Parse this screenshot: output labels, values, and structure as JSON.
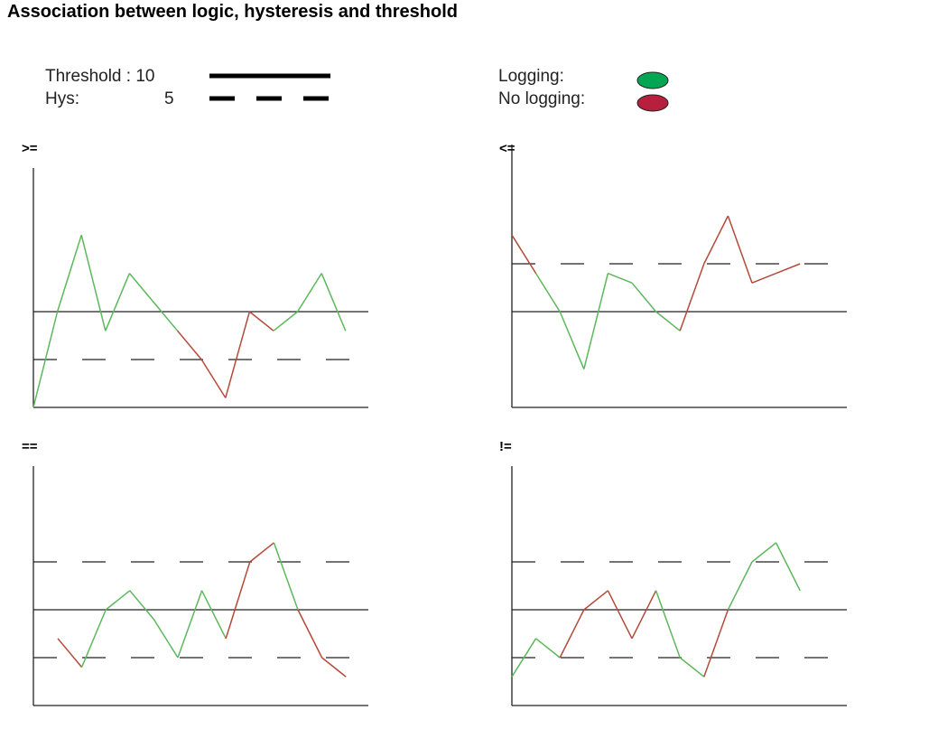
{
  "title": "Association between logic, hysteresis and threshold",
  "legend": {
    "threshold_label": "Threshold : 10",
    "hys_label": "Hys:",
    "hys_value": "5",
    "logging_label": "Logging:",
    "no_logging_label": "No logging:"
  },
  "colors": {
    "logging": "#00a651",
    "no_logging": "#b81f3c",
    "line_logging": "#5cb85c",
    "line_no_logging": "#b34a3a"
  },
  "panels": [
    {
      "operator": ">=",
      "threshold": 10,
      "hysteresis_lines": [
        5
      ],
      "points": [
        {
          "v": 0,
          "log": false
        },
        {
          "v": 10,
          "log": true
        },
        {
          "v": 18,
          "log": true
        },
        {
          "v": 8,
          "log": true
        },
        {
          "v": 14,
          "log": true
        },
        {
          "v": 11,
          "log": true
        },
        {
          "v": 8,
          "log": true
        },
        {
          "v": 5,
          "log": false
        },
        {
          "v": 1,
          "log": false
        },
        {
          "v": 10,
          "log": false
        },
        {
          "v": 8,
          "log": false
        },
        {
          "v": 10,
          "log": true
        },
        {
          "v": 14,
          "log": true
        },
        {
          "v": 8,
          "log": true
        }
      ]
    },
    {
      "operator": "<=",
      "threshold": 10,
      "hysteresis_lines": [
        15
      ],
      "points": [
        {
          "v": 18,
          "log": false
        },
        {
          "v": 14,
          "log": false
        },
        {
          "v": 10,
          "log": true
        },
        {
          "v": 4,
          "log": true
        },
        {
          "v": 14,
          "log": true
        },
        {
          "v": 13,
          "log": true
        },
        {
          "v": 10,
          "log": true
        },
        {
          "v": 8,
          "log": true
        },
        {
          "v": 15,
          "log": false
        },
        {
          "v": 20,
          "log": false
        },
        {
          "v": 13,
          "log": false
        },
        {
          "v": 14,
          "log": false
        },
        {
          "v": 15,
          "log": false
        }
      ]
    },
    {
      "operator": "==",
      "threshold": 10,
      "hysteresis_lines": [
        5,
        15
      ],
      "points": [
        {
          "v": 7,
          "log": false
        },
        {
          "v": 4,
          "log": false
        },
        {
          "v": 10,
          "log": true
        },
        {
          "v": 12,
          "log": true
        },
        {
          "v": 9,
          "log": true
        },
        {
          "v": 5,
          "log": true
        },
        {
          "v": 12,
          "log": true
        },
        {
          "v": 7,
          "log": true
        },
        {
          "v": 15,
          "log": false
        },
        {
          "v": 17,
          "log": false
        },
        {
          "v": 10,
          "log": true
        },
        {
          "v": 5,
          "log": false
        },
        {
          "v": 3,
          "log": false
        }
      ]
    },
    {
      "operator": "!=",
      "threshold": 10,
      "hysteresis_lines": [
        5,
        15
      ],
      "points": [
        {
          "v": 3,
          "log": true
        },
        {
          "v": 7,
          "log": true
        },
        {
          "v": 5,
          "log": true
        },
        {
          "v": 10,
          "log": false
        },
        {
          "v": 12,
          "log": false
        },
        {
          "v": 7,
          "log": false
        },
        {
          "v": 12,
          "log": false
        },
        {
          "v": 5,
          "log": true
        },
        {
          "v": 3,
          "log": true
        },
        {
          "v": 10,
          "log": false
        },
        {
          "v": 15,
          "log": true
        },
        {
          "v": 17,
          "log": true
        },
        {
          "v": 12,
          "log": true
        }
      ]
    }
  ]
}
